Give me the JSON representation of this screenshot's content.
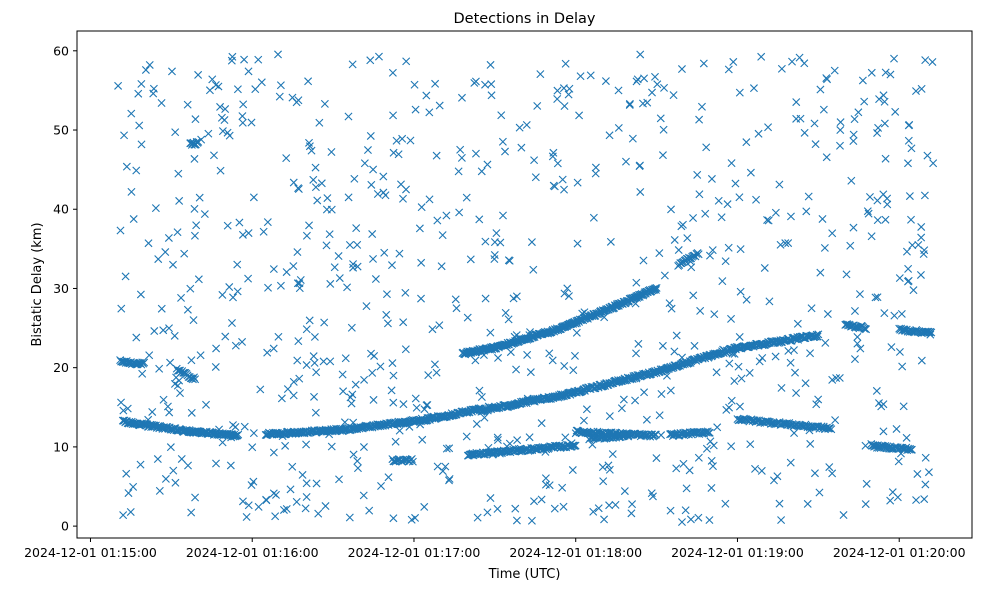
{
  "colors": {
    "series": "#1f77b4",
    "axes": "#000000",
    "background": "#ffffff"
  },
  "chart_data": {
    "type": "scatter",
    "title": "Detections in Delay",
    "xlabel": "Time (UTC)",
    "ylabel": "Bistatic Delay (km)",
    "marker": "x",
    "grid": false,
    "legend": "none",
    "x_ticks": [
      "2024-12-01 01:15:00",
      "2024-12-01 01:16:00",
      "2024-12-01 01:17:00",
      "2024-12-01 01:18:00",
      "2024-12-01 01:19:00",
      "2024-12-01 01:20:00"
    ],
    "y_ticks": [
      0,
      10,
      20,
      30,
      40,
      50,
      60
    ],
    "xlim": [
      "2024-12-01 01:14:55",
      "2024-12-01 01:20:27"
    ],
    "ylim": [
      -1.5,
      62.5
    ],
    "tracks": [
      {
        "x": [
          "2024-12-01 01:15:11",
          "2024-12-01 01:15:15",
          "2024-12-01 01:15:20"
        ],
        "y": [
          20.8,
          20.6,
          20.5
        ],
        "step_s": 0.35
      },
      {
        "x": [
          "2024-12-01 01:15:12",
          "2024-12-01 01:15:35",
          "2024-12-01 01:15:55"
        ],
        "y": [
          13.2,
          12.0,
          11.4
        ],
        "step_s": 0.3
      },
      {
        "x": [
          "2024-12-01 01:15:37",
          "2024-12-01 01:15:40"
        ],
        "y": [
          48.2,
          48.4
        ],
        "step_s": 0.3
      },
      {
        "x": [
          "2024-12-01 01:16:05",
          "2024-12-01 01:16:35",
          "2024-12-01 01:17:05",
          "2024-12-01 01:17:25"
        ],
        "y": [
          11.6,
          12.2,
          13.5,
          14.8
        ],
        "step_s": 0.3
      },
      {
        "x": [
          "2024-12-01 01:17:18",
          "2024-12-01 01:17:30",
          "2024-12-01 01:17:55",
          "2024-12-01 01:18:15",
          "2024-12-01 01:18:30"
        ],
        "y": [
          21.8,
          22.5,
          25.0,
          27.8,
          30.0
        ],
        "step_s": 0.25
      },
      {
        "x": [
          "2024-12-01 01:17:25",
          "2024-12-01 01:17:55",
          "2024-12-01 01:18:30",
          "2024-12-01 01:19:00",
          "2024-12-01 01:19:30"
        ],
        "y": [
          14.6,
          16.5,
          19.5,
          22.5,
          24.1
        ],
        "step_s": 0.3
      },
      {
        "x": [
          "2024-12-01 01:17:20",
          "2024-12-01 01:17:40",
          "2024-12-01 01:18:00"
        ],
        "y": [
          9.0,
          9.6,
          10.2
        ],
        "step_s": 0.35
      },
      {
        "x": [
          "2024-12-01 01:18:00",
          "2024-12-01 01:18:30"
        ],
        "y": [
          11.9,
          11.4
        ],
        "step_s": 0.35
      },
      {
        "x": [
          "2024-12-01 01:18:35",
          "2024-12-01 01:18:50"
        ],
        "y": [
          11.5,
          11.9
        ],
        "step_s": 0.35
      },
      {
        "x": [
          "2024-12-01 01:19:00",
          "2024-12-01 01:19:35"
        ],
        "y": [
          13.5,
          12.3
        ],
        "step_s": 0.4
      },
      {
        "x": [
          "2024-12-01 01:19:40",
          "2024-12-01 01:19:48"
        ],
        "y": [
          25.4,
          25.0
        ],
        "step_s": 0.35
      },
      {
        "x": [
          "2024-12-01 01:19:50",
          "2024-12-01 01:20:05"
        ],
        "y": [
          10.1,
          9.7
        ],
        "step_s": 0.35
      },
      {
        "x": [
          "2024-12-01 01:20:00",
          "2024-12-01 01:20:12"
        ],
        "y": [
          24.8,
          24.4
        ],
        "step_s": 0.35
      },
      {
        "x": [
          "2024-12-01 01:15:32",
          "2024-12-01 01:15:39"
        ],
        "y": [
          19.8,
          18.5
        ],
        "step_s": 0.4
      },
      {
        "x": [
          "2024-12-01 01:16:52",
          "2024-12-01 01:17:00"
        ],
        "y": [
          8.3,
          8.3
        ],
        "step_s": 0.4
      },
      {
        "x": [
          "2024-12-01 01:18:05",
          "2024-12-01 01:18:20"
        ],
        "y": [
          11.0,
          11.5
        ],
        "step_s": 0.4
      },
      {
        "x": [
          "2024-12-01 01:18:38",
          "2024-12-01 01:18:46"
        ],
        "y": [
          33.0,
          34.5
        ],
        "step_s": 0.4
      }
    ],
    "clutter": {
      "x_range": [
        "2024-12-01 01:15:10",
        "2024-12-01 01:20:13"
      ],
      "y_range": [
        0.5,
        59.8
      ],
      "count": 820
    }
  }
}
